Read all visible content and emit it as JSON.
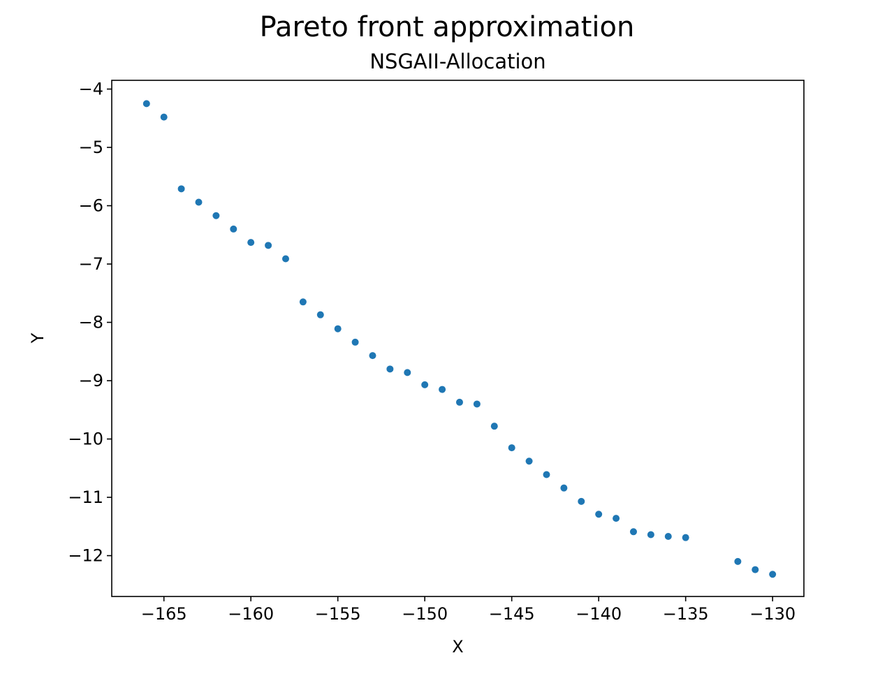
{
  "chart_data": {
    "type": "scatter",
    "title": "Pareto front approximation",
    "subtitle": "NSGAII-Allocation",
    "xlabel": "X",
    "ylabel": "Y",
    "xlim": [
      -168,
      -128.2
    ],
    "ylim": [
      -12.7,
      -3.85
    ],
    "x_ticks": [
      -165,
      -160,
      -155,
      -150,
      -145,
      -140,
      -135,
      -130
    ],
    "y_ticks": [
      -4,
      -5,
      -6,
      -7,
      -8,
      -9,
      -10,
      -11,
      -12
    ],
    "x_tick_labels": [
      "−165",
      "−160",
      "−155",
      "−150",
      "−145",
      "−140",
      "−135",
      "−130"
    ],
    "y_tick_labels": [
      "−4",
      "−5",
      "−6",
      "−7",
      "−8",
      "−9",
      "−10",
      "−11",
      "−12"
    ],
    "grid": false,
    "legend": "none",
    "marker_color": "#1f77b4",
    "points": [
      {
        "x": -166,
        "y": -4.25
      },
      {
        "x": -165,
        "y": -4.48
      },
      {
        "x": -164,
        "y": -5.71
      },
      {
        "x": -163,
        "y": -5.94
      },
      {
        "x": -162,
        "y": -6.17
      },
      {
        "x": -161,
        "y": -6.4
      },
      {
        "x": -160,
        "y": -6.63
      },
      {
        "x": -159,
        "y": -6.68
      },
      {
        "x": -158,
        "y": -6.91
      },
      {
        "x": -157,
        "y": -7.65
      },
      {
        "x": -156,
        "y": -7.87
      },
      {
        "x": -155,
        "y": -8.11
      },
      {
        "x": -154,
        "y": -8.34
      },
      {
        "x": -153,
        "y": -8.57
      },
      {
        "x": -152,
        "y": -8.8
      },
      {
        "x": -151,
        "y": -8.86
      },
      {
        "x": -150,
        "y": -9.07
      },
      {
        "x": -149,
        "y": -9.15
      },
      {
        "x": -148,
        "y": -9.37
      },
      {
        "x": -147,
        "y": -9.4
      },
      {
        "x": -146,
        "y": -9.78
      },
      {
        "x": -145,
        "y": -10.15
      },
      {
        "x": -144,
        "y": -10.38
      },
      {
        "x": -143,
        "y": -10.61
      },
      {
        "x": -142,
        "y": -10.84
      },
      {
        "x": -141,
        "y": -11.07
      },
      {
        "x": -140,
        "y": -11.29
      },
      {
        "x": -139,
        "y": -11.36
      },
      {
        "x": -138,
        "y": -11.59
      },
      {
        "x": -137,
        "y": -11.64
      },
      {
        "x": -136,
        "y": -11.67
      },
      {
        "x": -135,
        "y": -11.69
      },
      {
        "x": -132,
        "y": -12.1
      },
      {
        "x": -131,
        "y": -12.24
      },
      {
        "x": -130,
        "y": -12.32
      }
    ]
  }
}
